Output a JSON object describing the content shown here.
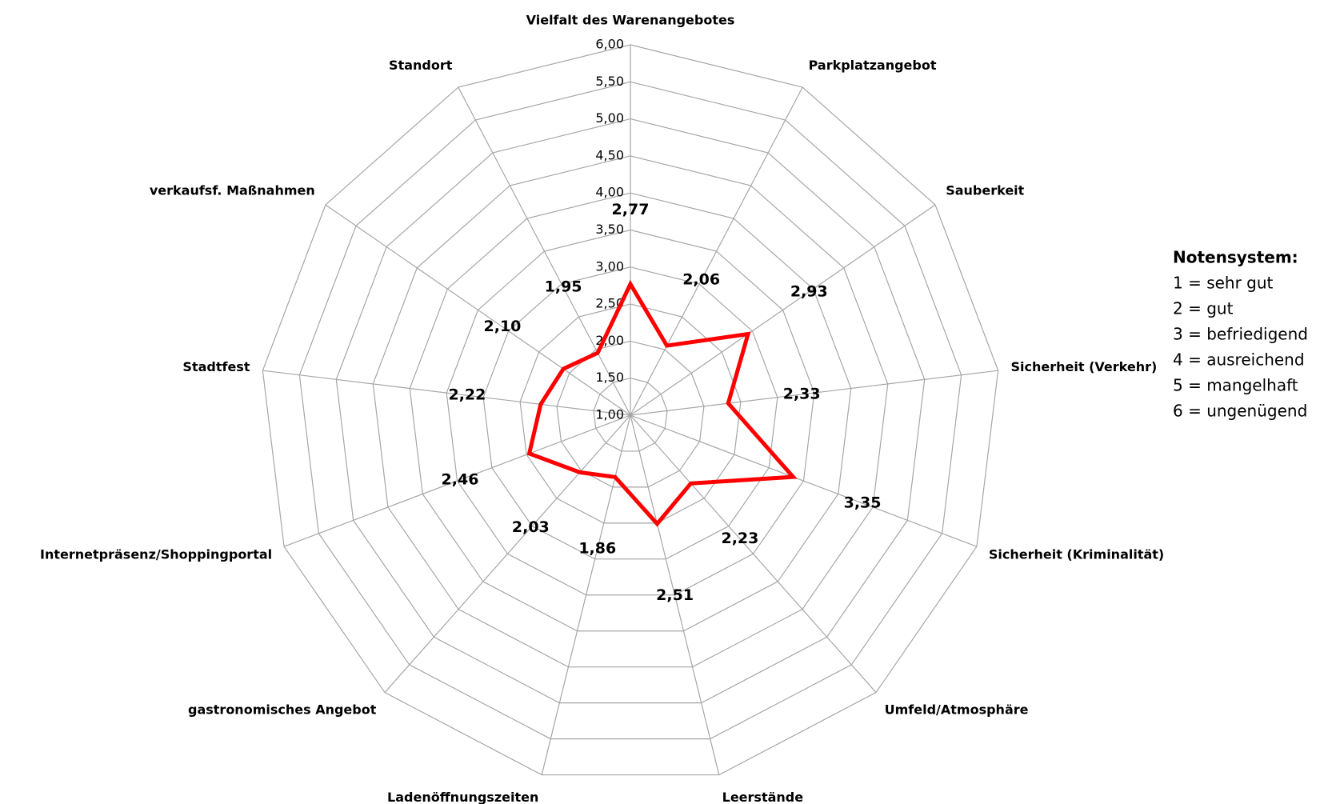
{
  "chart_data": {
    "type": "radar",
    "categories": [
      "Vielfalt des Warenangebotes",
      "Parkplatzangebot",
      "Sauberkeit",
      "Sicherheit (Verkehr)",
      "Sicherheit (Kriminalität)",
      "Umfeld/Atmosphäre",
      "Leerstände",
      "Ladenöffnungszeiten",
      "gastronomisches Angebot",
      "Internetpräsenz/Shoppingportal",
      "Stadtfest",
      "verkaufsf. Maßnahmen",
      "Standort"
    ],
    "values": [
      2.77,
      2.06,
      2.93,
      2.33,
      3.35,
      2.23,
      2.51,
      1.86,
      2.03,
      2.46,
      2.22,
      2.1,
      1.95
    ],
    "value_labels": [
      "2,77",
      "2,06",
      "2,93",
      "2,33",
      "3,35",
      "2,23",
      "2,51",
      "1,86",
      "2,03",
      "2,46",
      "2,22",
      "2,10",
      "1,95"
    ],
    "color": "#ff0000",
    "ylim": [
      1,
      6
    ],
    "yticks": [
      {
        "value": 1,
        "label": "1,00"
      },
      {
        "value": 1.5,
        "label": "1,50"
      },
      {
        "value": 2,
        "label": "2,00"
      },
      {
        "value": 2.5,
        "label": "2,50"
      },
      {
        "value": 3,
        "label": "3,00"
      },
      {
        "value": 3.5,
        "label": "3,50"
      },
      {
        "value": 4,
        "label": "4,00"
      },
      {
        "value": 4.5,
        "label": "4,50"
      },
      {
        "value": 5,
        "label": "5,00"
      },
      {
        "value": 5.5,
        "label": "5,50"
      },
      {
        "value": 6,
        "label": "6,00"
      }
    ],
    "grid": true,
    "notes": {
      "title": "Notensystem:",
      "items": [
        "1 = sehr gut",
        "2 = gut",
        "3 = befriedigend",
        "4 = ausreichend",
        "5 = mangelhaft",
        "6 = ungenügend"
      ]
    }
  }
}
